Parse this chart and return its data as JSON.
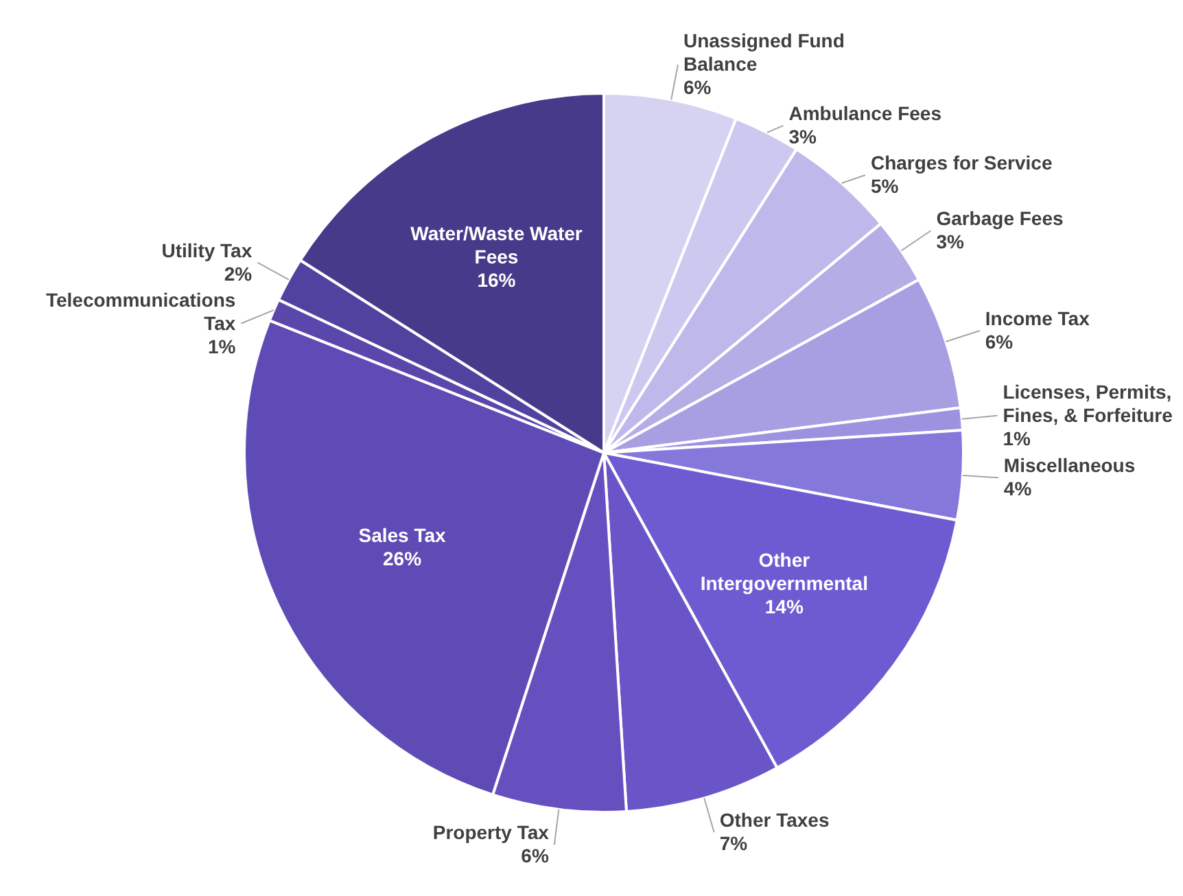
{
  "chart_data": {
    "type": "pie",
    "categories": [
      "Unassigned Fund Balance",
      "Ambulance Fees",
      "Charges for Service",
      "Garbage Fees",
      "Income Tax",
      "Licenses, Permits, Fines, & Forfeiture",
      "Miscellaneous",
      "Other Intergovernmental",
      "Other Taxes",
      "Property Tax",
      "Sales Tax",
      "Telecommunications Tax",
      "Utility Tax",
      "Water/Waste Water Fees"
    ],
    "values": [
      6,
      3,
      5,
      3,
      6,
      1,
      4,
      14,
      7,
      6,
      26,
      1,
      2,
      16
    ],
    "value_labels": [
      "6%",
      "3%",
      "5%",
      "3%",
      "6%",
      "1%",
      "4%",
      "14%",
      "7%",
      "6%",
      "26%",
      "1%",
      "2%",
      "16%"
    ],
    "colors": [
      "#d6d2f2",
      "#cdc8ef",
      "#bfb8ea",
      "#b5ade6",
      "#a89fe3",
      "#9d92e0",
      "#8478db",
      "#6f5bd1",
      "#6a55c8",
      "#6650c0",
      "#5f4bb5",
      "#5a47ac",
      "#5242a0",
      "#473a8a"
    ]
  }
}
